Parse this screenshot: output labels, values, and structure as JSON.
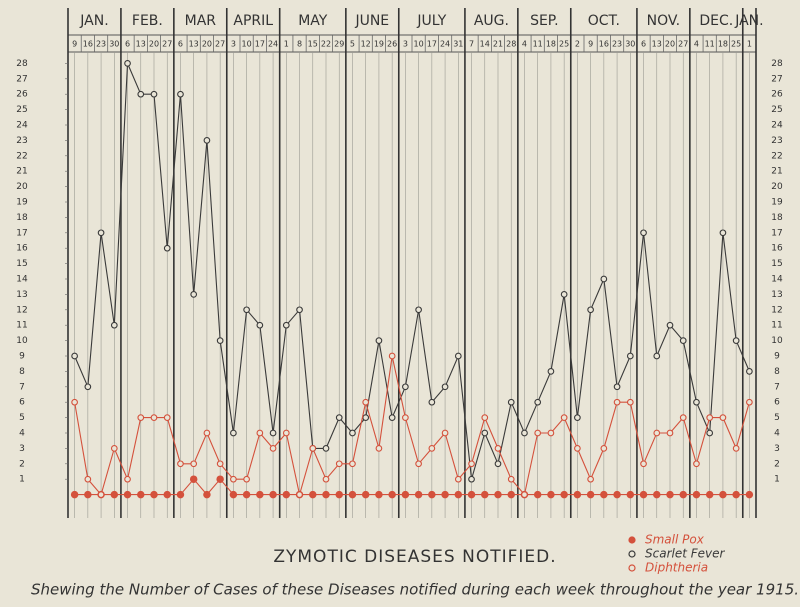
{
  "chart_data": {
    "type": "line",
    "title": "ZYMOTIC DISEASES NOTIFIED.",
    "caption": "Shewing the Number of Cases of these Diseases notified during each week throughout the year 1915.",
    "month_labels": [
      "JAN.",
      "FEB.",
      "MAR",
      "APRIL",
      "MAY",
      "JUNE",
      "JULY",
      "AUG.",
      "SEP.",
      "OCT.",
      "NOV.",
      "DEC.",
      "JAN."
    ],
    "categories": [
      "9",
      "16",
      "23",
      "30",
      "6",
      "13",
      "20",
      "27",
      "6",
      "13",
      "20",
      "27",
      "3",
      "10",
      "17",
      "24",
      "1",
      "8",
      "15",
      "22",
      "29",
      "5",
      "12",
      "19",
      "26",
      "3",
      "10",
      "17",
      "24",
      "31",
      "7",
      "14",
      "21",
      "28",
      "4",
      "11",
      "18",
      "25",
      "2",
      "9",
      "16",
      "23",
      "30",
      "6",
      "13",
      "20",
      "27",
      "4",
      "11",
      "18",
      "25",
      "1"
    ],
    "series": [
      {
        "name": "Small Pox",
        "color": "#d4513c",
        "marker": "filled",
        "values": [
          0,
          0,
          0,
          0,
          0,
          0,
          0,
          0,
          0,
          1,
          0,
          1,
          0,
          0,
          0,
          0,
          0,
          0,
          0,
          0,
          0,
          0,
          0,
          0,
          0,
          0,
          0,
          0,
          0,
          0,
          0,
          0,
          0,
          0,
          0,
          0,
          0,
          0,
          0,
          0,
          0,
          0,
          0,
          0,
          0,
          0,
          0,
          0,
          0,
          0,
          0,
          0
        ]
      },
      {
        "name": "Scarlet Fever",
        "color": "#3a3a3a",
        "marker": "open",
        "values": [
          9,
          7,
          17,
          11,
          28,
          26,
          26,
          16,
          26,
          13,
          23,
          10,
          4,
          12,
          11,
          4,
          11,
          12,
          3,
          3,
          5,
          4,
          5,
          10,
          5,
          7,
          12,
          6,
          7,
          9,
          1,
          4,
          2,
          6,
          4,
          6,
          8,
          13,
          5,
          12,
          14,
          7,
          9,
          17,
          9,
          11,
          10,
          6,
          4,
          17,
          10,
          8
        ]
      },
      {
        "name": "Diphtheria",
        "color": "#d4513c",
        "marker": "open",
        "values": [
          6,
          1,
          0,
          3,
          1,
          5,
          5,
          5,
          2,
          2,
          4,
          2,
          1,
          1,
          4,
          3,
          4,
          0,
          3,
          1,
          2,
          2,
          6,
          3,
          9,
          5,
          2,
          3,
          4,
          1,
          2,
          5,
          3,
          1,
          0,
          4,
          4,
          5,
          3,
          1,
          3,
          6,
          6,
          2,
          4,
          4,
          5,
          2,
          5,
          5,
          3,
          6
        ]
      }
    ],
    "ylim": [
      -1,
      29
    ],
    "yticks": [
      1,
      2,
      3,
      4,
      5,
      6,
      7,
      8,
      9,
      10,
      11,
      12,
      13,
      14,
      15,
      16,
      17,
      18,
      19,
      20,
      21,
      22,
      23,
      24,
      25,
      26,
      27,
      28
    ]
  }
}
